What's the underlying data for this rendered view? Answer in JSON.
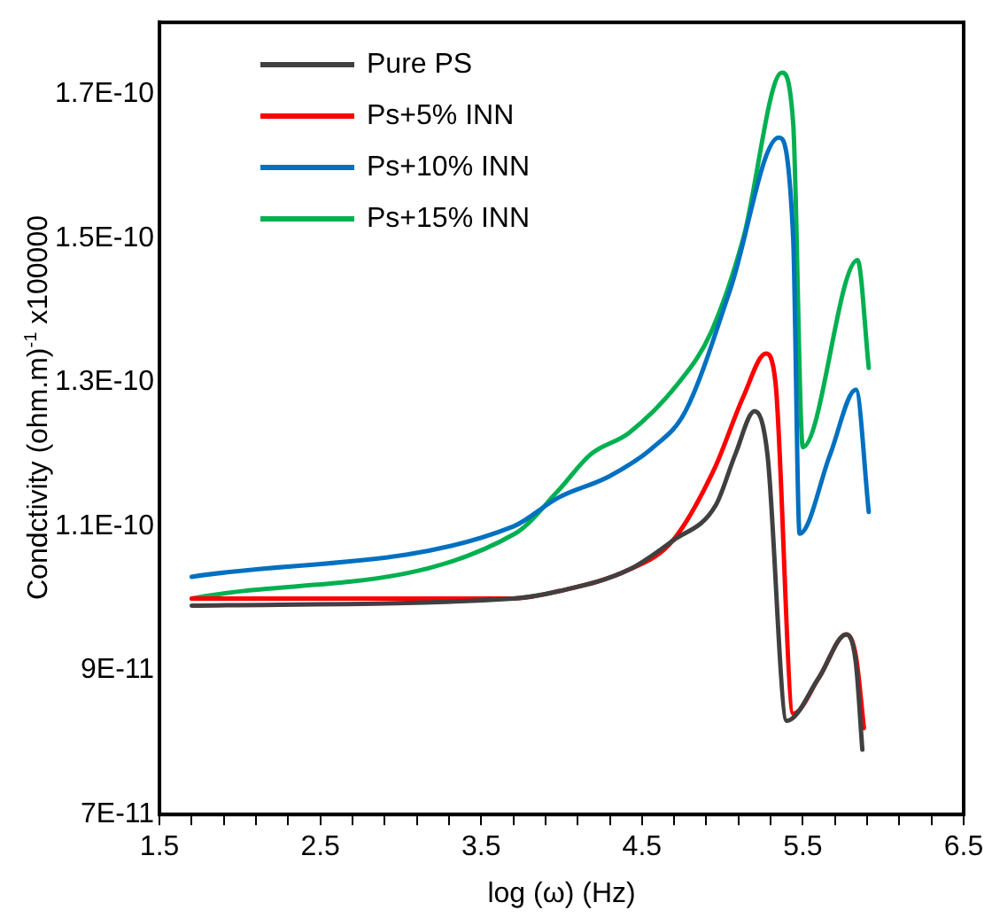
{
  "chart_data": {
    "type": "line",
    "xlabel": "log (ω) (Hz)",
    "ylabel": "Condctivity (ohm.m)$^{-1}$ x100000",
    "xlim": [
      1.5,
      6.5
    ],
    "xticks": [
      1.5,
      {
        "value": 1.7,
        "label": null
      },
      {
        "value": 1.9,
        "label": null
      },
      {
        "value": 2.1,
        "label": null
      },
      {
        "value": 2.3,
        "label": null
      },
      2.5,
      {
        "value": 2.7,
        "label": null
      },
      {
        "value": 2.9,
        "label": null
      },
      {
        "value": 3.1,
        "label": null
      },
      {
        "value": 3.3,
        "label": null
      },
      3.5,
      {
        "value": 3.7,
        "label": null
      },
      {
        "value": 3.9,
        "label": null
      },
      {
        "value": 4.1,
        "label": null
      },
      {
        "value": 4.3,
        "label": null
      },
      4.5,
      {
        "value": 4.7,
        "label": null
      },
      {
        "value": 4.9,
        "label": null
      },
      {
        "value": 5.1,
        "label": null
      },
      {
        "value": 5.3,
        "label": null
      },
      5.5,
      {
        "value": 5.7,
        "label": null
      },
      {
        "value": 5.9,
        "label": null
      },
      {
        "value": 6.1,
        "label": null
      },
      {
        "value": 6.3,
        "label": null
      },
      6.5
    ],
    "ylim": [
      7e-11,
      1.8e-10
    ],
    "yticks": [
      {
        "value": 7e-11,
        "label": "7E-11"
      },
      {
        "value": 9e-11,
        "label": "9E-11"
      },
      {
        "value": 1.1e-10,
        "label": "1.1E-10"
      },
      {
        "value": 1.3e-10,
        "label": "1.3E-10"
      },
      {
        "value": 1.5e-10,
        "label": "1.5E-10"
      },
      {
        "value": 1.7e-10,
        "label": "1.7E-10"
      }
    ],
    "grid": false,
    "legend": "top left",
    "marker": "none",
    "line_style": "solid",
    "series": [
      {
        "name": "Pure PS",
        "color": "#404040",
        "x": [
          1.7,
          3.7,
          3.98,
          4.42,
          4.69,
          4.96,
          5.08,
          5.2,
          5.28,
          5.4,
          5.6,
          5.77,
          5.83,
          5.87
        ],
        "values": [
          9.9e-11,
          1e-10,
          1.01e-10,
          1.04e-10,
          1.08e-10,
          1.13e-10,
          1.2e-10,
          1.26e-10,
          1.2e-10,
          8.3e-11,
          8.9e-11,
          9.5e-11,
          9.1e-11,
          7.9e-11
        ]
      },
      {
        "name": "Ps+5% INN",
        "color": "#ff0000",
        "x": [
          1.7,
          3.7,
          3.98,
          4.42,
          4.69,
          4.95,
          5.13,
          5.27,
          5.33,
          5.44,
          5.6,
          5.77,
          5.83,
          5.88
        ],
        "values": [
          1e-10,
          1e-10,
          1.01e-10,
          1.04e-10,
          1.08e-10,
          1.18e-10,
          1.28e-10,
          1.34e-10,
          1.3e-10,
          8.4e-11,
          8.9e-11,
          9.5e-11,
          9.2e-11,
          8.2e-11
        ]
      },
      {
        "name": "Ps+10% INN",
        "color": "#0070c0",
        "x": [
          1.7,
          3.7,
          3.98,
          4.3,
          4.57,
          4.77,
          5.05,
          5.35,
          5.44,
          5.48,
          5.67,
          5.83,
          5.91
        ],
        "values": [
          1.03e-10,
          1.1e-10,
          1.14e-10,
          1.17e-10,
          1.21e-10,
          1.26e-10,
          1.43e-10,
          1.64e-10,
          1.5e-10,
          1.09e-10,
          1.2e-10,
          1.29e-10,
          1.12e-10
        ]
      },
      {
        "name": "Ps+15% INN",
        "color": "#00b050",
        "x": [
          1.7,
          3.71,
          3.98,
          4.18,
          4.42,
          4.73,
          4.93,
          5.13,
          5.37,
          5.44,
          5.5,
          5.84,
          5.91
        ],
        "values": [
          1e-10,
          1.09e-10,
          1.15e-10,
          1.2e-10,
          1.23e-10,
          1.3e-10,
          1.37e-10,
          1.5e-10,
          1.73e-10,
          1.66e-10,
          1.21e-10,
          1.47e-10,
          1.32e-10
        ]
      }
    ]
  }
}
